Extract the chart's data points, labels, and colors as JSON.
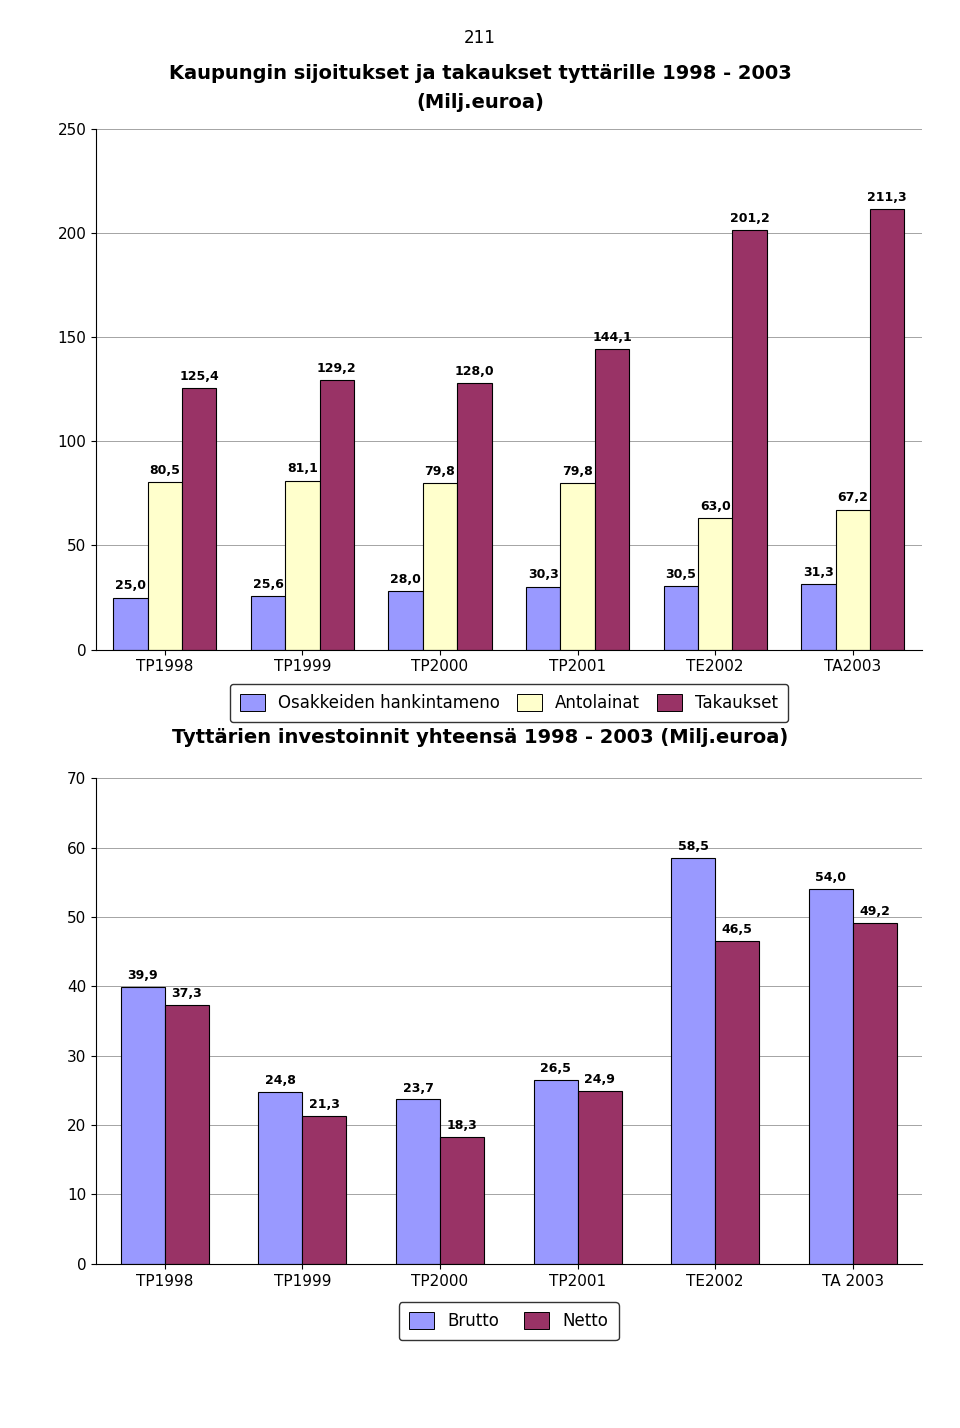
{
  "page_number": "211",
  "chart1": {
    "title_line1": "Kaupungin sijoitukset ja takaukset tyttärille 1998 - 2003",
    "title_line2": "(Milj.euroa)",
    "categories": [
      "TP1998",
      "TP1999",
      "TP2000",
      "TP2001",
      "TE2002",
      "TA2003"
    ],
    "series": {
      "Osakkeiden hankintameno": [
        25.0,
        25.6,
        28.0,
        30.3,
        30.5,
        31.3
      ],
      "Antolainat": [
        80.5,
        81.1,
        79.8,
        79.8,
        63.0,
        67.2
      ],
      "Takaukset": [
        125.4,
        129.2,
        128.0,
        144.1,
        201.2,
        211.3
      ]
    },
    "colors": {
      "Osakkeiden hankintameno": "#9999FF",
      "Antolainat": "#FFFFCC",
      "Takaukset": "#993366"
    },
    "ylim": [
      0,
      250
    ],
    "yticks": [
      0,
      50,
      100,
      150,
      200,
      250
    ],
    "legend_labels": [
      "Osakkeiden hankintameno",
      "Antolainat",
      "Takaukset"
    ]
  },
  "chart2": {
    "title": "Tyttärien investoinnit yhteensä 1998 - 2003 (Milj.euroa)",
    "categories": [
      "TP1998",
      "TP1999",
      "TP2000",
      "TP2001",
      "TE2002",
      "TA 2003"
    ],
    "series": {
      "Brutto": [
        39.9,
        24.8,
        23.7,
        26.5,
        58.5,
        54.0
      ],
      "Netto": [
        37.3,
        21.3,
        18.3,
        24.9,
        46.5,
        49.2
      ]
    },
    "colors": {
      "Brutto": "#9999FF",
      "Netto": "#993366"
    },
    "ylim": [
      0,
      70
    ],
    "yticks": [
      0,
      10,
      20,
      30,
      40,
      50,
      60,
      70
    ],
    "legend_labels": [
      "Brutto",
      "Netto"
    ]
  },
  "background_color": "#FFFFFF",
  "bar_edge_color": "#000000",
  "label_fontsize": 9,
  "tick_fontsize": 11,
  "title_fontsize": 14,
  "legend_fontsize": 12
}
